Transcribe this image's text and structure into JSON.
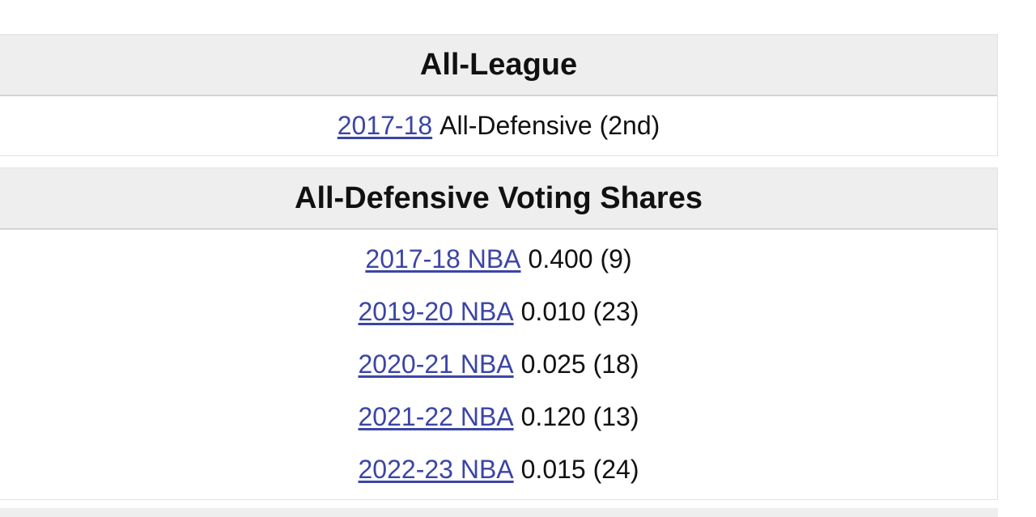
{
  "sections": [
    {
      "title": "All-League",
      "rows": [
        {
          "link": "2017-18",
          "text": "All-Defensive (2nd)"
        }
      ]
    },
    {
      "title": "All-Defensive Voting Shares",
      "rows": [
        {
          "link": "2017-18 NBA",
          "text": "0.400 (9)"
        },
        {
          "link": "2019-20 NBA",
          "text": "0.010 (23)"
        },
        {
          "link": "2020-21 NBA",
          "text": "0.025 (18)"
        },
        {
          "link": "2021-22 NBA",
          "text": "0.120 (13)"
        },
        {
          "link": "2022-23 NBA",
          "text": "0.015 (24)"
        }
      ]
    }
  ]
}
